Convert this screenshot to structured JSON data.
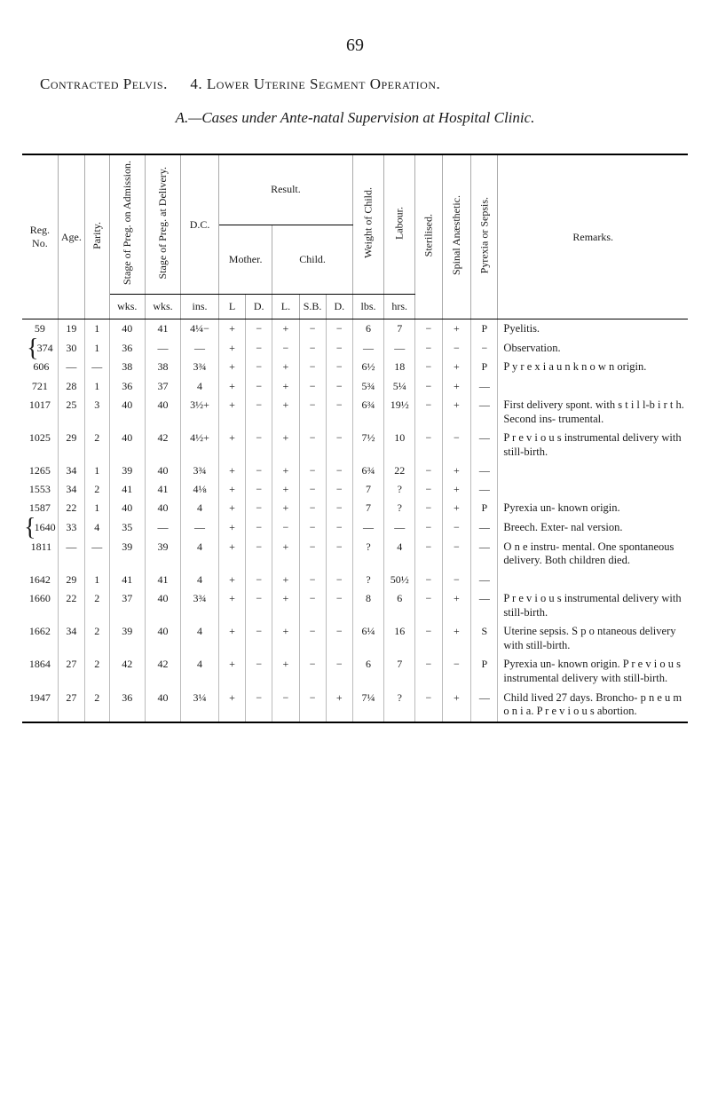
{
  "page_number": "69",
  "title_line1_a": "Contracted Pelvis.",
  "title_line1_b": "4. Lower Uterine Segment Operation.",
  "title_line2": "A.—Cases under Ante-natal Supervision at Hospital Clinic.",
  "headers": {
    "reg": "Reg. No.",
    "age": "Age.",
    "parity": "Parity.",
    "stage_adm": "Stage of Preg. on Admission.",
    "stage_del": "Stage of Preg. at Delivery.",
    "wks": "wks.",
    "dc": "D.C.",
    "ins": "ins.",
    "result": "Result.",
    "mother": "Mother.",
    "child": "Child.",
    "mL": "L",
    "mD": "D.",
    "cL": "L.",
    "cSB": "S.B.",
    "cD": "D.",
    "weight": "Weight of Child.",
    "lbs": "lbs.",
    "labour": "Labour.",
    "hrs": "hrs.",
    "ster": "Sterilised.",
    "anaes": "Spinal Anæsthetic.",
    "pyr": "Pyrexia or Sepsis.",
    "remarks": "Remarks."
  },
  "rows": [
    {
      "reg": "59",
      "age": "19",
      "par": "1",
      "w1": "40",
      "w2": "41",
      "dc": "4¼−",
      "mL": "+",
      "mD": "−",
      "cL": "+",
      "cSB": "−",
      "cD": "−",
      "wt": "6",
      "lab": "7",
      "st": "−",
      "an": "+",
      "py": "P",
      "rem": "Pyelitis."
    },
    {
      "reg": "374",
      "age": "30",
      "par": "1",
      "w1": "36",
      "w2": "—",
      "dc": "—",
      "mL": "+",
      "mD": "−",
      "cL": "−",
      "cSB": "−",
      "cD": "−",
      "wt": "—",
      "lab": "—",
      "st": "−",
      "an": "−",
      "py": "−",
      "rem": "Observation.",
      "brace_open": true
    },
    {
      "reg": "606",
      "age": "—",
      "par": "—",
      "w1": "38",
      "w2": "38",
      "dc": "3¾",
      "mL": "+",
      "mD": "−",
      "cL": "+",
      "cSB": "−",
      "cD": "−",
      "wt": "6½",
      "lab": "18",
      "st": "−",
      "an": "+",
      "py": "P",
      "rem": "P y r e x i a u n k n o w n origin.",
      "brace_close": true
    },
    {
      "reg": "721",
      "age": "28",
      "par": "1",
      "w1": "36",
      "w2": "37",
      "dc": "4",
      "mL": "+",
      "mD": "−",
      "cL": "+",
      "cSB": "−",
      "cD": "−",
      "wt": "5¾",
      "lab": "5¼",
      "st": "−",
      "an": "+",
      "py": "—",
      "rem": ""
    },
    {
      "reg": "1017",
      "age": "25",
      "par": "3",
      "w1": "40",
      "w2": "40",
      "dc": "3½+",
      "mL": "+",
      "mD": "−",
      "cL": "+",
      "cSB": "−",
      "cD": "−",
      "wt": "6¾",
      "lab": "19½",
      "st": "−",
      "an": "+",
      "py": "—",
      "rem": "First delivery spont. with s t i l l-b i r t h. Second ins- trumental."
    },
    {
      "reg": "1025",
      "age": "29",
      "par": "2",
      "w1": "40",
      "w2": "42",
      "dc": "4½+",
      "mL": "+",
      "mD": "−",
      "cL": "+",
      "cSB": "−",
      "cD": "−",
      "wt": "7½",
      "lab": "10",
      "st": "−",
      "an": "−",
      "py": "—",
      "rem": "P r e v i o u s instrumental delivery with still-birth."
    },
    {
      "reg": "1265",
      "age": "34",
      "par": "1",
      "w1": "39",
      "w2": "40",
      "dc": "3¾",
      "mL": "+",
      "mD": "−",
      "cL": "+",
      "cSB": "−",
      "cD": "−",
      "wt": "6¾",
      "lab": "22",
      "st": "−",
      "an": "+",
      "py": "—",
      "rem": ""
    },
    {
      "reg": "1553",
      "age": "34",
      "par": "2",
      "w1": "41",
      "w2": "41",
      "dc": "4⅛",
      "mL": "+",
      "mD": "−",
      "cL": "+",
      "cSB": "−",
      "cD": "−",
      "wt": "7",
      "lab": "?",
      "st": "−",
      "an": "+",
      "py": "—",
      "rem": ""
    },
    {
      "reg": "1587",
      "age": "22",
      "par": "1",
      "w1": "40",
      "w2": "40",
      "dc": "4",
      "mL": "+",
      "mD": "−",
      "cL": "+",
      "cSB": "−",
      "cD": "−",
      "wt": "7",
      "lab": "?",
      "st": "−",
      "an": "+",
      "py": "P",
      "rem": "Pyrexia un- known origin."
    },
    {
      "reg": "1640",
      "age": "33",
      "par": "4",
      "w1": "35",
      "w2": "—",
      "dc": "—",
      "mL": "+",
      "mD": "−",
      "cL": "−",
      "cSB": "−",
      "cD": "−",
      "wt": "—",
      "lab": "—",
      "st": "−",
      "an": "−",
      "py": "—",
      "rem": "Breech. Exter- nal version.",
      "brace_open": true
    },
    {
      "reg": "1811",
      "age": "—",
      "par": "—",
      "w1": "39",
      "w2": "39",
      "dc": "4",
      "mL": "+",
      "mD": "−",
      "cL": "+",
      "cSB": "−",
      "cD": "−",
      "wt": "?",
      "lab": "4",
      "st": "−",
      "an": "−",
      "py": "—",
      "rem": "O n e instru- mental. One spontaneous delivery. Both children died.",
      "brace_close": true
    },
    {
      "reg": "1642",
      "age": "29",
      "par": "1",
      "w1": "41",
      "w2": "41",
      "dc": "4",
      "mL": "+",
      "mD": "−",
      "cL": "+",
      "cSB": "−",
      "cD": "−",
      "wt": "?",
      "lab": "50½",
      "st": "−",
      "an": "−",
      "py": "—",
      "rem": ""
    },
    {
      "reg": "1660",
      "age": "22",
      "par": "2",
      "w1": "37",
      "w2": "40",
      "dc": "3¾",
      "mL": "+",
      "mD": "−",
      "cL": "+",
      "cSB": "−",
      "cD": "−",
      "wt": "8",
      "lab": "6",
      "st": "−",
      "an": "+",
      "py": "—",
      "rem": "P r e v i o u s instrumental delivery with still-birth."
    },
    {
      "reg": "1662",
      "age": "34",
      "par": "2",
      "w1": "39",
      "w2": "40",
      "dc": "4",
      "mL": "+",
      "mD": "−",
      "cL": "+",
      "cSB": "−",
      "cD": "−",
      "wt": "6¼",
      "lab": "16",
      "st": "−",
      "an": "+",
      "py": "S",
      "rem": "Uterine sepsis. S p o ntaneous delivery with still-birth."
    },
    {
      "reg": "1864",
      "age": "27",
      "par": "2",
      "w1": "42",
      "w2": "42",
      "dc": "4",
      "mL": "+",
      "mD": "−",
      "cL": "+",
      "cSB": "−",
      "cD": "−",
      "wt": "6",
      "lab": "7",
      "st": "−",
      "an": "−",
      "py": "P",
      "rem": "Pyrexia un- known origin. P r e v i o u s instrumental delivery with still-birth."
    },
    {
      "reg": "1947",
      "age": "27",
      "par": "2",
      "w1": "36",
      "w2": "40",
      "dc": "3¼",
      "mL": "+",
      "mD": "−",
      "cL": "−",
      "cSB": "−",
      "cD": "+",
      "wt": "7¼",
      "lab": "?",
      "st": "−",
      "an": "+",
      "py": "—",
      "rem": "Child lived 27 days. Broncho- p n e u m o n i a. P r e v i o u s abortion."
    }
  ]
}
